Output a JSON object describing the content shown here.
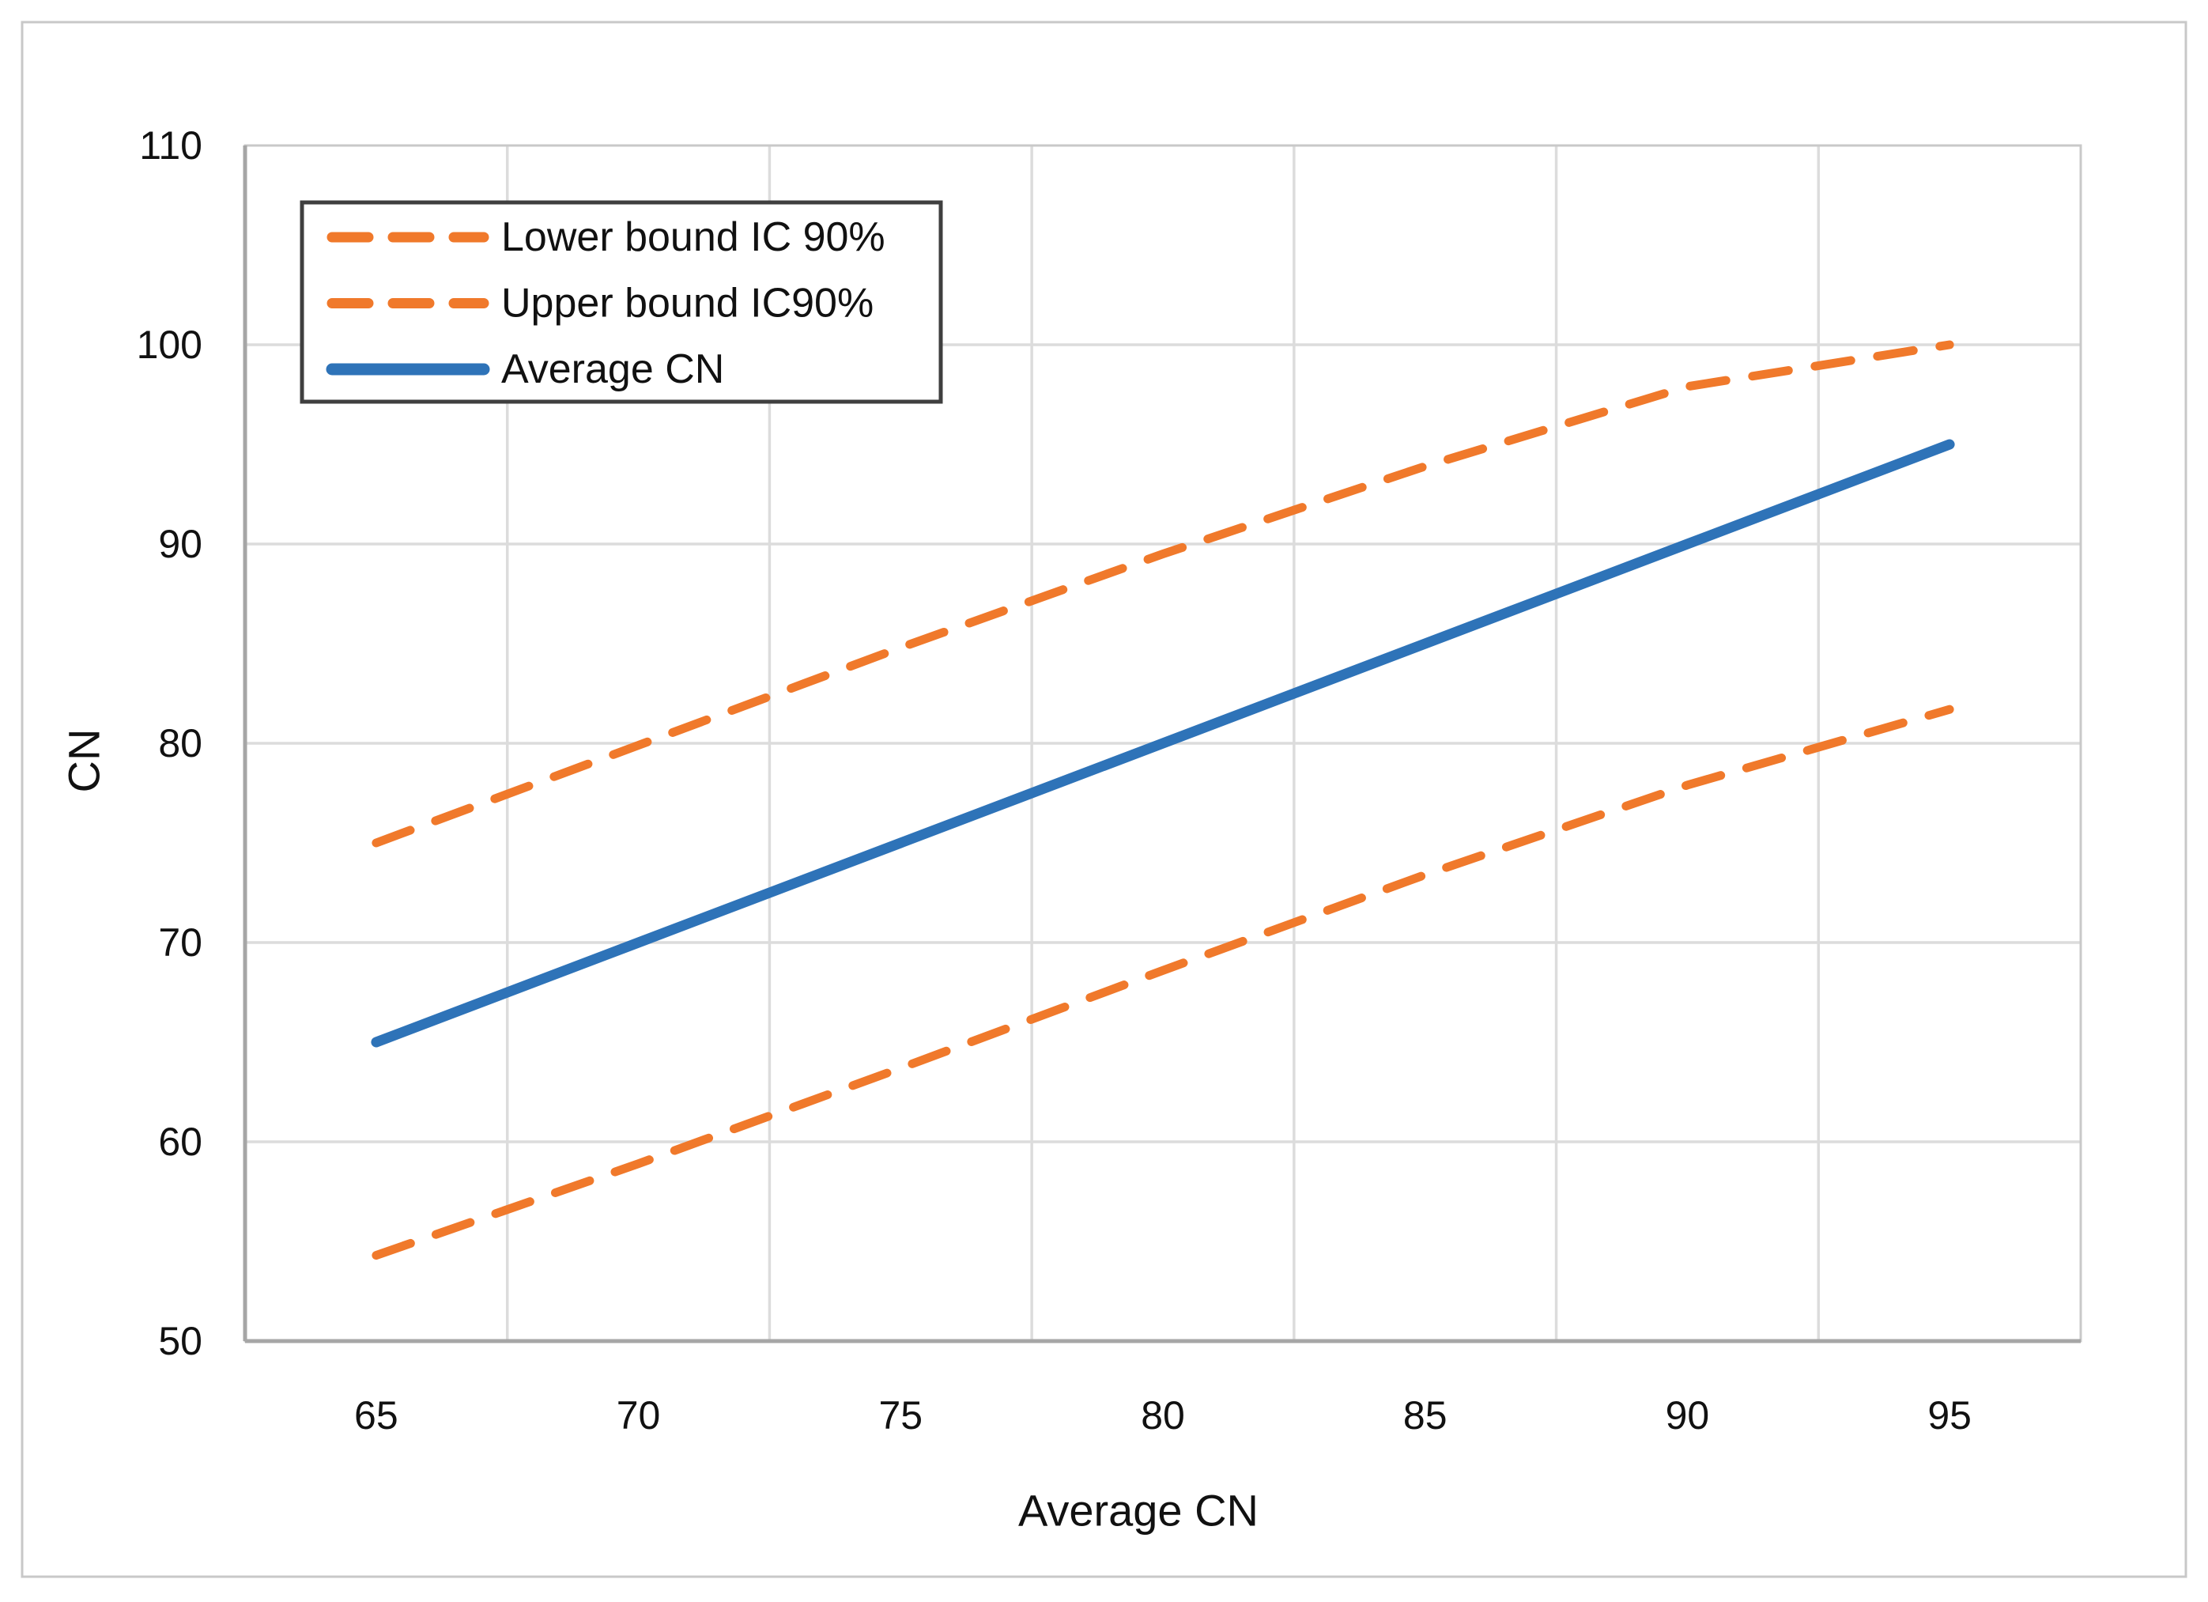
{
  "figure": {
    "background": "#ffffff",
    "outer_border_color": "#c8c8c8"
  },
  "chart_data": {
    "type": "line",
    "title": "",
    "xlabel": "Average CN",
    "ylabel": "CN",
    "categories": [
      65,
      70,
      75,
      80,
      85,
      90,
      95
    ],
    "x_axis": {
      "tick_labels": [
        "65",
        "70",
        "75",
        "80",
        "85",
        "90",
        "95"
      ],
      "placement": "category-centers"
    },
    "y_axis": {
      "min": 50,
      "max": 110,
      "step": 10,
      "ticks": [
        50,
        60,
        70,
        80,
        90,
        100,
        110
      ],
      "tick_labels": [
        "50",
        "60",
        "70",
        "80",
        "90",
        "100",
        "110"
      ]
    },
    "grid": true,
    "gridline_color": "#dcdcdc",
    "axis_line_color": "#a6a6a6",
    "plot_border_color": "#c9c9c9",
    "legend_position": "top-left-inside",
    "legend_border_color": "#3f3f3f",
    "series": [
      {
        "name": "Lower bound IC 90%",
        "style": "dashed",
        "color": "#F0792B",
        "values": [
          54.3,
          58.9,
          63.7,
          68.6,
          73.4,
          77.9,
          81.7
        ]
      },
      {
        "name": "Upper bound IC90%",
        "style": "dashed",
        "color": "#F0792B",
        "values": [
          75.0,
          79.9,
          84.8,
          89.5,
          93.9,
          97.9,
          100.0
        ]
      },
      {
        "name": "Average CN",
        "style": "solid",
        "color": "#2E73B8",
        "values": [
          65,
          70,
          75,
          80,
          85,
          90,
          95
        ]
      }
    ]
  }
}
